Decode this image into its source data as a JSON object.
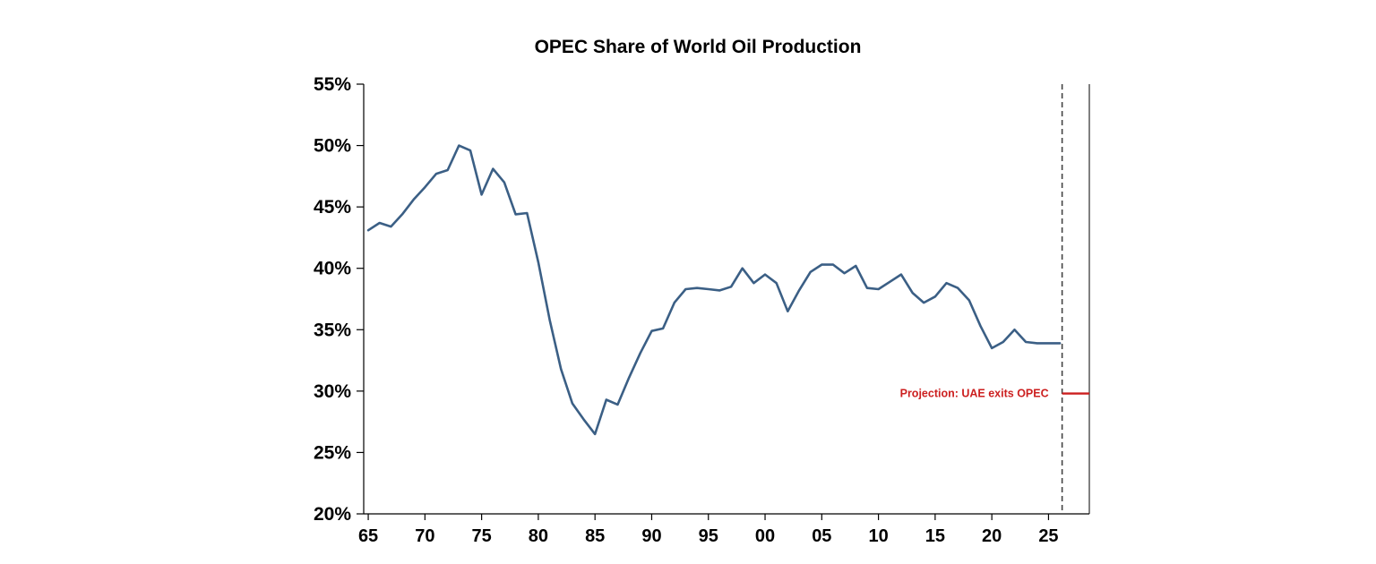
{
  "chart_data": {
    "type": "line",
    "title": "OPEC Share of World Oil Production",
    "xlabel": "",
    "ylabel": "",
    "xlim": [
      1964.6,
      2028.6
    ],
    "ylim": [
      20,
      55
    ],
    "y_ticks": [
      20,
      25,
      30,
      35,
      40,
      45,
      50,
      55
    ],
    "y_tick_labels": [
      "20%",
      "25%",
      "30%",
      "35%",
      "40%",
      "45%",
      "50%",
      "55%"
    ],
    "x_ticks": [
      1965,
      1970,
      1975,
      1980,
      1985,
      1990,
      1995,
      2000,
      2005,
      2010,
      2015,
      2020,
      2025
    ],
    "x_tick_labels": [
      "65",
      "70",
      "75",
      "80",
      "85",
      "90",
      "95",
      "00",
      "05",
      "10",
      "15",
      "20",
      "25"
    ],
    "grid": false,
    "line_color": "#3b5f85",
    "series": [
      {
        "x": [
          1965,
          1966,
          1967,
          1968,
          1969,
          1970,
          1971,
          1972,
          1973,
          1974,
          1975,
          1976,
          1977,
          1978,
          1979,
          1980,
          1981,
          1982,
          1983,
          1984,
          1985,
          1986,
          1987,
          1988,
          1989,
          1990,
          1991,
          1992,
          1993,
          1994,
          1995,
          1996,
          1997,
          1998,
          1999,
          2000,
          2001,
          2002,
          2003,
          2004,
          2005,
          2006,
          2007,
          2008,
          2009,
          2010,
          2011,
          2012,
          2013,
          2014,
          2015,
          2016,
          2017,
          2018,
          2019,
          2020,
          2021,
          2022,
          2023,
          2024,
          2025,
          2026
        ],
        "values": [
          43.1,
          43.7,
          43.4,
          44.4,
          45.6,
          46.6,
          47.7,
          48.0,
          50.0,
          49.6,
          46.0,
          48.1,
          47.0,
          44.4,
          44.5,
          40.5,
          35.8,
          31.8,
          29.0,
          27.7,
          26.5,
          29.3,
          28.9,
          31.1,
          33.1,
          34.9,
          35.1,
          37.2,
          38.3,
          38.4,
          38.3,
          38.2,
          38.5,
          40.0,
          38.8,
          39.5,
          38.8,
          36.5,
          38.2,
          39.7,
          40.3,
          40.3,
          39.6,
          40.2,
          38.4,
          38.3,
          38.9,
          39.5,
          38.0,
          37.2,
          37.7,
          38.8,
          38.4,
          37.4,
          35.3,
          33.5,
          34.0,
          35.0,
          34.0,
          33.9,
          33.9,
          33.9
        ]
      }
    ],
    "projection_line_x": 2026.2,
    "projection_line_style": "dashed",
    "annotation": {
      "text": "Projection: UAE exits OPEC",
      "value": 29.8,
      "color": "#cc1f1f",
      "x_start": 2026.2,
      "x_end": 2028.6
    }
  }
}
